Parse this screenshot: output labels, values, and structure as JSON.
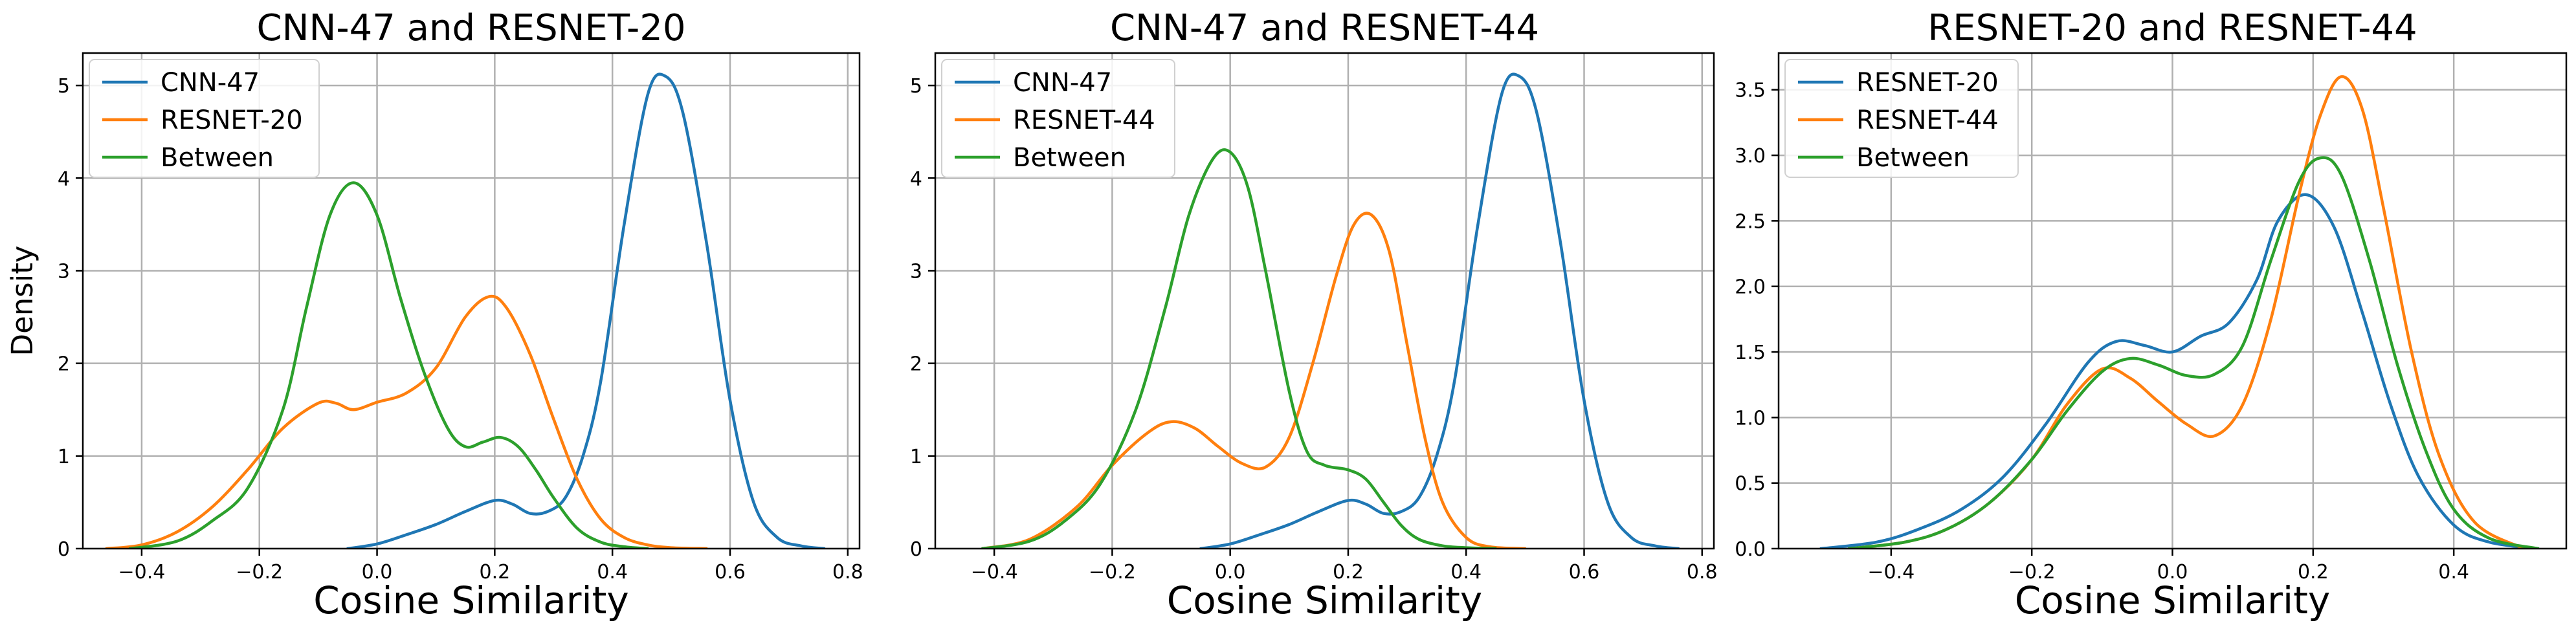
{
  "chart_data": [
    {
      "type": "line",
      "title": "CNN-47 and RESNET-20",
      "xlabel": "Cosine Similarity",
      "ylabel": "Density",
      "xlim": [
        -0.5,
        0.82
      ],
      "ylim": [
        0,
        5.35
      ],
      "xticks": [
        -0.4,
        -0.2,
        0.0,
        0.2,
        0.4,
        0.6,
        0.8
      ],
      "xtick_labels": [
        "−0.4",
        "−0.2",
        "0.0",
        "0.2",
        "0.4",
        "0.6",
        "0.8"
      ],
      "yticks": [
        0,
        1,
        2,
        3,
        4,
        5
      ],
      "ytick_labels": [
        "0",
        "1",
        "2",
        "3",
        "4",
        "5"
      ],
      "grid": true,
      "legend": "upper left",
      "series": [
        {
          "name": "CNN-47",
          "color": "#1f77b4",
          "x": [
            -0.05,
            0.0,
            0.05,
            0.1,
            0.15,
            0.2,
            0.23,
            0.26,
            0.29,
            0.32,
            0.35,
            0.38,
            0.42,
            0.46,
            0.49,
            0.52,
            0.56,
            0.6,
            0.64,
            0.68,
            0.72,
            0.76
          ],
          "y": [
            0.0,
            0.05,
            0.15,
            0.26,
            0.4,
            0.52,
            0.48,
            0.38,
            0.4,
            0.55,
            1.0,
            1.8,
            3.5,
            4.9,
            5.1,
            4.7,
            3.3,
            1.6,
            0.5,
            0.12,
            0.03,
            0.0
          ]
        },
        {
          "name": "RESNET-20",
          "color": "#ff7f0e",
          "x": [
            -0.46,
            -0.4,
            -0.34,
            -0.28,
            -0.22,
            -0.16,
            -0.1,
            -0.07,
            -0.04,
            0.0,
            0.05,
            0.1,
            0.15,
            0.19,
            0.22,
            0.26,
            0.3,
            0.34,
            0.38,
            0.42,
            0.46,
            0.5,
            0.56
          ],
          "y": [
            0.0,
            0.04,
            0.18,
            0.45,
            0.85,
            1.3,
            1.57,
            1.57,
            1.5,
            1.58,
            1.68,
            1.95,
            2.5,
            2.72,
            2.6,
            2.1,
            1.4,
            0.75,
            0.32,
            0.12,
            0.04,
            0.01,
            0.0
          ]
        },
        {
          "name": "Between",
          "color": "#2ca02c",
          "x": [
            -0.42,
            -0.34,
            -0.28,
            -0.22,
            -0.16,
            -0.12,
            -0.08,
            -0.04,
            0.0,
            0.04,
            0.08,
            0.12,
            0.15,
            0.18,
            0.21,
            0.24,
            0.27,
            0.3,
            0.34,
            0.38,
            0.42,
            0.46
          ],
          "y": [
            0.0,
            0.08,
            0.3,
            0.65,
            1.5,
            2.6,
            3.6,
            3.95,
            3.6,
            2.7,
            1.9,
            1.3,
            1.1,
            1.15,
            1.2,
            1.1,
            0.85,
            0.55,
            0.22,
            0.07,
            0.02,
            0.0
          ]
        }
      ]
    },
    {
      "type": "line",
      "title": "CNN-47 and RESNET-44",
      "xlabel": "Cosine Similarity",
      "ylabel": "",
      "xlim": [
        -0.5,
        0.82
      ],
      "ylim": [
        0,
        5.35
      ],
      "xticks": [
        -0.4,
        -0.2,
        0.0,
        0.2,
        0.4,
        0.6,
        0.8
      ],
      "xtick_labels": [
        "−0.4",
        "−0.2",
        "0.0",
        "0.2",
        "0.4",
        "0.6",
        "0.8"
      ],
      "yticks": [
        0,
        1,
        2,
        3,
        4,
        5
      ],
      "ytick_labels": [
        "0",
        "1",
        "2",
        "3",
        "4",
        "5"
      ],
      "grid": true,
      "legend": "upper left",
      "series": [
        {
          "name": "CNN-47",
          "color": "#1f77b4",
          "x": [
            -0.05,
            0.0,
            0.05,
            0.1,
            0.15,
            0.2,
            0.23,
            0.26,
            0.29,
            0.32,
            0.35,
            0.38,
            0.42,
            0.46,
            0.49,
            0.52,
            0.56,
            0.6,
            0.64,
            0.68,
            0.72,
            0.76
          ],
          "y": [
            0.0,
            0.05,
            0.15,
            0.26,
            0.4,
            0.52,
            0.48,
            0.38,
            0.4,
            0.55,
            1.0,
            1.8,
            3.5,
            4.9,
            5.1,
            4.7,
            3.3,
            1.6,
            0.5,
            0.12,
            0.03,
            0.0
          ]
        },
        {
          "name": "RESNET-44",
          "color": "#ff7f0e",
          "x": [
            -0.42,
            -0.34,
            -0.26,
            -0.2,
            -0.14,
            -0.1,
            -0.06,
            -0.02,
            0.02,
            0.06,
            0.1,
            0.14,
            0.18,
            0.21,
            0.24,
            0.27,
            0.3,
            0.33,
            0.36,
            0.4,
            0.44,
            0.5
          ],
          "y": [
            0.0,
            0.1,
            0.45,
            0.9,
            1.25,
            1.37,
            1.3,
            1.1,
            0.92,
            0.88,
            1.2,
            2.0,
            2.95,
            3.5,
            3.6,
            3.2,
            2.2,
            1.2,
            0.5,
            0.12,
            0.02,
            0.0
          ]
        },
        {
          "name": "Between",
          "color": "#2ca02c",
          "x": [
            -0.42,
            -0.34,
            -0.28,
            -0.22,
            -0.16,
            -0.11,
            -0.07,
            -0.03,
            0.0,
            0.03,
            0.06,
            0.1,
            0.13,
            0.16,
            0.2,
            0.23,
            0.26,
            0.29,
            0.32,
            0.36,
            0.4,
            0.45
          ],
          "y": [
            0.0,
            0.08,
            0.3,
            0.7,
            1.5,
            2.6,
            3.6,
            4.2,
            4.28,
            3.9,
            3.0,
            1.7,
            1.05,
            0.9,
            0.85,
            0.75,
            0.5,
            0.25,
            0.1,
            0.03,
            0.01,
            0.0
          ]
        }
      ]
    },
    {
      "type": "line",
      "title": "RESNET-20 and RESNET-44",
      "xlabel": "Cosine Similarity",
      "ylabel": "",
      "xlim": [
        -0.56,
        0.56
      ],
      "ylim": [
        0,
        3.78
      ],
      "xticks": [
        -0.4,
        -0.2,
        0.0,
        0.2,
        0.4
      ],
      "xtick_labels": [
        "−0.4",
        "−0.2",
        "0.0",
        "0.2",
        "0.4"
      ],
      "yticks": [
        0.0,
        0.5,
        1.0,
        1.5,
        2.0,
        2.5,
        3.0,
        3.5
      ],
      "ytick_labels": [
        "0.0",
        "0.5",
        "1.0",
        "1.5",
        "2.0",
        "2.5",
        "3.0",
        "3.5"
      ],
      "grid": true,
      "legend": "upper left",
      "series": [
        {
          "name": "RESNET-20",
          "color": "#1f77b4",
          "x": [
            -0.5,
            -0.42,
            -0.36,
            -0.3,
            -0.24,
            -0.18,
            -0.12,
            -0.08,
            -0.04,
            0.0,
            0.04,
            0.08,
            0.12,
            0.15,
            0.19,
            0.23,
            0.27,
            0.31,
            0.35,
            0.4,
            0.45,
            0.52
          ],
          "y": [
            0.0,
            0.05,
            0.15,
            0.3,
            0.55,
            0.95,
            1.42,
            1.58,
            1.55,
            1.5,
            1.62,
            1.72,
            2.05,
            2.5,
            2.7,
            2.45,
            1.8,
            1.1,
            0.55,
            0.18,
            0.05,
            0.0
          ]
        },
        {
          "name": "RESNET-44",
          "color": "#ff7f0e",
          "x": [
            -0.46,
            -0.38,
            -0.32,
            -0.26,
            -0.2,
            -0.15,
            -0.1,
            -0.06,
            -0.02,
            0.02,
            0.06,
            0.1,
            0.14,
            0.18,
            0.21,
            0.24,
            0.27,
            0.3,
            0.34,
            0.38,
            0.43,
            0.5
          ],
          "y": [
            0.0,
            0.05,
            0.15,
            0.35,
            0.68,
            1.1,
            1.37,
            1.3,
            1.12,
            0.95,
            0.86,
            1.1,
            1.75,
            2.7,
            3.3,
            3.6,
            3.35,
            2.6,
            1.5,
            0.7,
            0.2,
            0.0
          ]
        },
        {
          "name": "Between",
          "color": "#2ca02c",
          "x": [
            -0.46,
            -0.38,
            -0.32,
            -0.26,
            -0.2,
            -0.15,
            -0.1,
            -0.06,
            -0.02,
            0.02,
            0.06,
            0.1,
            0.14,
            0.18,
            0.21,
            0.24,
            0.28,
            0.32,
            0.36,
            0.4,
            0.45,
            0.52
          ],
          "y": [
            0.0,
            0.05,
            0.15,
            0.35,
            0.68,
            1.05,
            1.35,
            1.45,
            1.4,
            1.32,
            1.33,
            1.55,
            2.2,
            2.8,
            2.98,
            2.85,
            2.2,
            1.4,
            0.75,
            0.3,
            0.08,
            0.0
          ]
        }
      ]
    }
  ]
}
